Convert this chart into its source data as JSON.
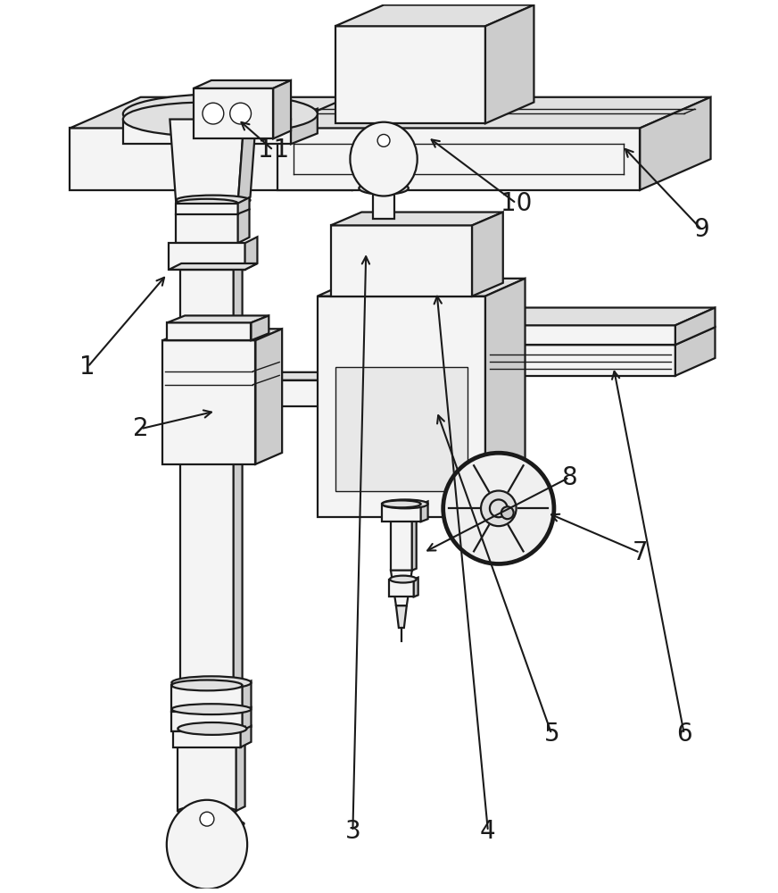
{
  "background_color": "#ffffff",
  "figure_width": 8.72,
  "figure_height": 10.0,
  "dpi": 100,
  "line_color": "#1a1a1a",
  "text_color": "#1a1a1a",
  "label_fontsize": 20,
  "fc_light": "#f4f4f4",
  "fc_mid": "#e0e0e0",
  "fc_dark": "#cccccc",
  "fc_darker": "#b8b8b8"
}
